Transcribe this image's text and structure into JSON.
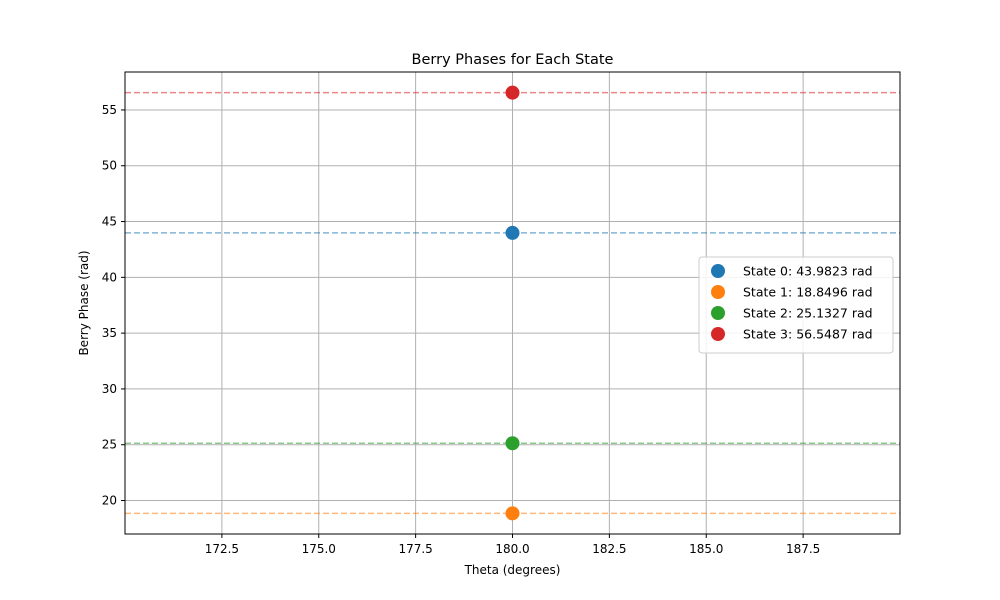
{
  "chart_data": {
    "type": "scatter",
    "title": "Berry Phases for Each State",
    "xlabel": "Theta (degrees)",
    "ylabel": "Berry Phase (rad)",
    "xlim": [
      170.0,
      190.0
    ],
    "ylim": [
      17.0,
      58.4
    ],
    "xticks": [
      172.5,
      175.0,
      177.5,
      180.0,
      182.5,
      185.0,
      187.5
    ],
    "xtick_labels": [
      "172.5",
      "175.0",
      "177.5",
      "180.0",
      "182.5",
      "185.0",
      "187.5"
    ],
    "yticks": [
      20,
      25,
      30,
      35,
      40,
      45,
      50,
      55
    ],
    "ytick_labels": [
      "20",
      "25",
      "30",
      "35",
      "40",
      "45",
      "50",
      "55"
    ],
    "grid": true,
    "legend_position": "center-right",
    "series": [
      {
        "name": "State 0: 43.9823 rad",
        "x": [
          180.0
        ],
        "y": [
          43.9823
        ],
        "color": "#1f77b4",
        "hline": 43.9823
      },
      {
        "name": "State 1: 18.8496 rad",
        "x": [
          180.0
        ],
        "y": [
          18.8496
        ],
        "color": "#ff7f0e",
        "hline": 18.8496
      },
      {
        "name": "State 2: 25.1327 rad",
        "x": [
          180.0
        ],
        "y": [
          25.1327
        ],
        "color": "#2ca02c",
        "hline": 25.1327
      },
      {
        "name": "State 3: 56.5487 rad",
        "x": [
          180.0
        ],
        "y": [
          56.5487
        ],
        "color": "#d62728",
        "hline": 56.5487
      }
    ]
  }
}
